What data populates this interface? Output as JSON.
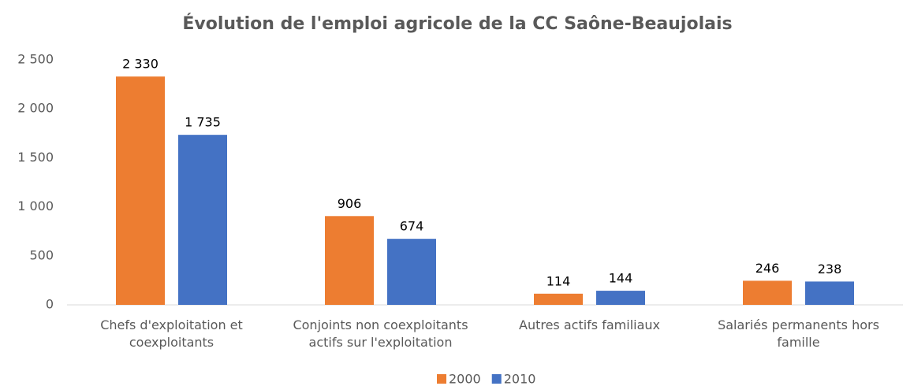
{
  "chart_data": {
    "type": "bar",
    "title": "Évolution de l'emploi agricole de la CC Saône-Beaujolais",
    "categories": [
      "Chefs d'exploitation et coexploitants",
      "Conjoints non coexploitants actifs sur l'exploitation",
      "Autres actifs familiaux",
      "Salariés permanents hors famille"
    ],
    "series": [
      {
        "name": "2000",
        "color": "#ed7d31",
        "values": [
          2330,
          906,
          114,
          246
        ],
        "value_labels": [
          "2 330",
          "906",
          "114",
          "246"
        ]
      },
      {
        "name": "2010",
        "color": "#4472c4",
        "values": [
          1735,
          674,
          144,
          238
        ],
        "value_labels": [
          "1 735",
          "674",
          "144",
          "238"
        ]
      }
    ],
    "ylim": [
      0,
      2500
    ],
    "yticks": [
      0,
      500,
      {
        "value": 1000,
        "label": "1 000"
      },
      {
        "value": 1500,
        "label": "1 500"
      },
      {
        "value": 2000,
        "label": "2 000"
      },
      {
        "value": 2500,
        "label": "2 500"
      }
    ],
    "grid": false,
    "legend": "bottom"
  }
}
